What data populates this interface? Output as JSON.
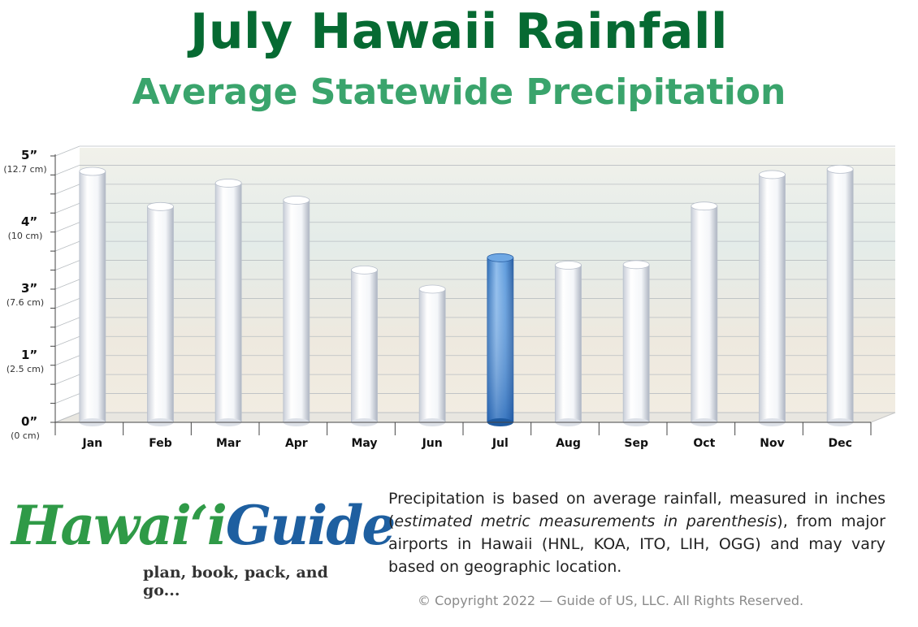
{
  "title": "July Hawaii Rainfall",
  "subtitle": "Average Statewide Precipitation",
  "chart_data": {
    "type": "bar",
    "title": "July Hawaii Rainfall",
    "subtitle": "Average Statewide Precipitation",
    "categories": [
      "Jan",
      "Feb",
      "Mar",
      "Apr",
      "May",
      "Jun",
      "Jul",
      "Aug",
      "Sep",
      "Oct",
      "Nov",
      "Dec"
    ],
    "values": [
      4.71,
      4.05,
      4.49,
      4.17,
      2.86,
      2.5,
      3.09,
      2.95,
      2.96,
      4.06,
      4.65,
      4.75
    ],
    "highlight_category": "Jul",
    "y_ticks": [
      {
        "main": "0”",
        "sub": "(0 cm)",
        "pos": 0
      },
      {
        "main": "1”",
        "sub": "(2.5 cm)",
        "pos": 1
      },
      {
        "main": "3”",
        "sub": "(7.6 cm)",
        "pos": 2
      },
      {
        "main": "4”",
        "sub": "(10 cm)",
        "pos": 3
      },
      {
        "main": "5”",
        "sub": "(12.7 cm)",
        "pos": 4
      }
    ],
    "ylim": [
      0,
      5
    ],
    "grid": true,
    "colors": {
      "bar": "#f3f5f8",
      "highlight": "#4a8fd6",
      "grid": "#b9bec2"
    }
  },
  "description": {
    "part1": "Precipitation is based on average rainfall, measured in inches (",
    "emph": "estimated metric measurements in parenthesis",
    "part2": "), from major airports in Hawaii (HNL, KOA, ITO, LIH, OGG) and may vary based on geographic location."
  },
  "copyright": "© Copyright 2022 — Guide of US, LLC. All Rights Reserved.",
  "logo": {
    "word1": "Hawaiʻi",
    "word2": "Guide",
    "tagline": "plan, book, pack, and go..."
  }
}
